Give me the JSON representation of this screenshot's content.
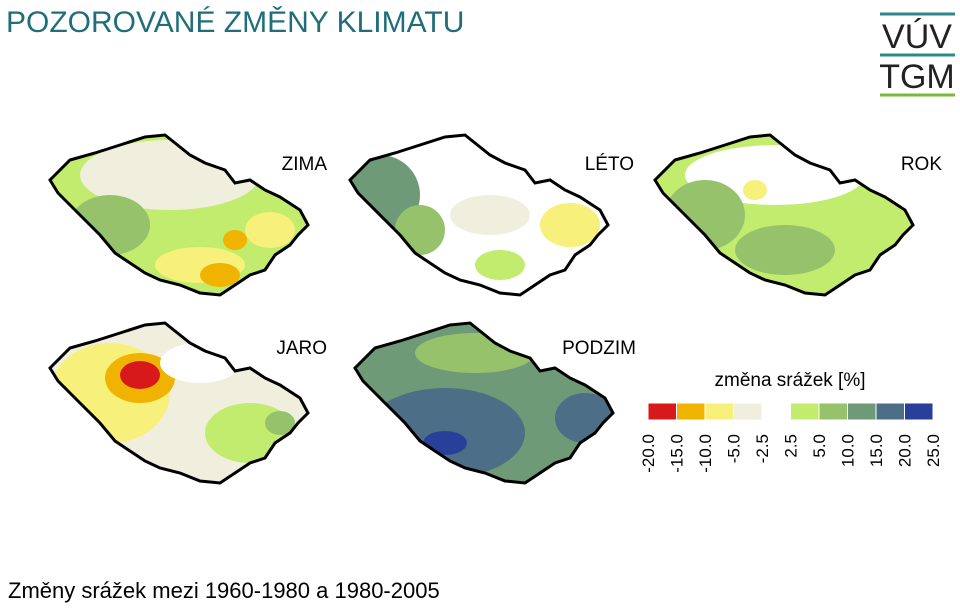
{
  "header": {
    "title": "POZOROVANÉ ZMĚNY KLIMATU",
    "logo": [
      "VÚV",
      "TGM"
    ]
  },
  "maps": [
    {
      "label": "ZIMA"
    },
    {
      "label": "LÉTO"
    },
    {
      "label": "ROK"
    },
    {
      "label": "JARO"
    },
    {
      "label": "PODZIM"
    }
  ],
  "legend": {
    "title": "změna srážek [%]",
    "colors": [
      "#d7191c",
      "#f0b400",
      "#f7f07a",
      "#f0eedc",
      "#ffffff",
      "#c2ec6e",
      "#97c26c",
      "#6f9a78",
      "#4c6e86",
      "#28409a"
    ],
    "ticks": [
      {
        "value": -20,
        "label": "-20.0"
      },
      {
        "value": -15,
        "label": "-15.0"
      },
      {
        "value": -10,
        "label": "-10.0"
      },
      {
        "value": -5,
        "label": "-5.0"
      },
      {
        "value": -2.5,
        "label": "-2.5"
      },
      {
        "value": 2.5,
        "label": "2.5"
      },
      {
        "value": 5,
        "label": "5.0"
      },
      {
        "value": 10,
        "label": "10.0"
      },
      {
        "value": 15,
        "label": "15.0"
      },
      {
        "value": 20,
        "label": "20.0"
      },
      {
        "value": 25,
        "label": "25.0"
      }
    ]
  },
  "caption": "Změny srážek mezi 1960-1980 a 1980-2005"
}
